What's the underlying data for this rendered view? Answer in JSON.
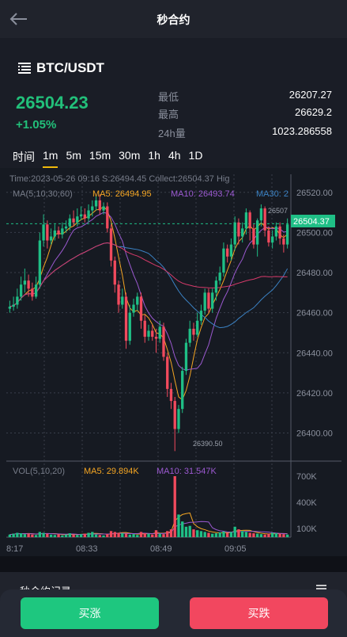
{
  "header": {
    "title": "秒合约"
  },
  "market": {
    "pair": "BTC/USDT",
    "price": "26504.23",
    "change": "+1.05%",
    "stats": [
      {
        "label": "最低",
        "value": "26207.27"
      },
      {
        "label": "最高",
        "value": "26629.2"
      },
      {
        "label": "24h量",
        "value": "1023.286558"
      }
    ]
  },
  "intervals": [
    "时间",
    "1m",
    "5m",
    "15m",
    "30m",
    "1h",
    "4h",
    "1D"
  ],
  "chart_info": {
    "info_line": "Time:2023-05-26 09:16   S:26494.45   Collect:26504.37   Hig",
    "ma_label": "MA(5;10;30;60)",
    "ma5": "MA5: 26494.95",
    "ma10": "MA10: 26493.74",
    "ma30": "MA30: 2",
    "vol_label": "VOL(5,10,20)",
    "vol_ma5": "MA5: 29.894K",
    "vol_ma10": "MA10: 31.547K",
    "last_price_tag": "26504.37",
    "high_marker": "26507",
    "low_marker": "26390.50"
  },
  "chart_data": {
    "type": "candlestick",
    "y_ticks": [
      "26520.00",
      "26500.00",
      "26480.00",
      "26460.00",
      "26440.00",
      "26420.00",
      "26400.00"
    ],
    "ylim": [
      26386,
      26529
    ],
    "x_ticks": [
      "8:17",
      "08:33",
      "08:49",
      "09:05"
    ],
    "vol_ticks": [
      "700K",
      "400K",
      "100K"
    ],
    "candles": [
      [
        26462,
        26463,
        26466,
        26460
      ],
      [
        26463,
        26464,
        26468,
        26461
      ],
      [
        26464,
        26468,
        26472,
        26462
      ],
      [
        26468,
        26474,
        26478,
        26466
      ],
      [
        26474,
        26476,
        26482,
        26470
      ],
      [
        26476,
        26472,
        26479,
        26468
      ],
      [
        26472,
        26468,
        26475,
        26466
      ],
      [
        26468,
        26474,
        26478,
        26467
      ],
      [
        26474,
        26496,
        26500,
        26472
      ],
      [
        26496,
        26504,
        26509,
        26493
      ],
      [
        26504,
        26496,
        26506,
        26492
      ],
      [
        26496,
        26498,
        26502,
        26494
      ],
      [
        26498,
        26501,
        26504,
        26496
      ],
      [
        26501,
        26499,
        26503,
        26497
      ],
      [
        26499,
        26502,
        26505,
        26497
      ],
      [
        26502,
        26503,
        26506,
        26500
      ],
      [
        26503,
        26507,
        26509,
        26501
      ],
      [
        26507,
        26505,
        26511,
        26503
      ],
      [
        26505,
        26508,
        26512,
        26503
      ],
      [
        26508,
        26509,
        26513,
        26506
      ],
      [
        26509,
        26507,
        26512,
        26505
      ],
      [
        26507,
        26511,
        26514,
        26505
      ],
      [
        26511,
        26513,
        26516,
        26508
      ],
      [
        26513,
        26516,
        26518,
        26511
      ],
      [
        26516,
        26511,
        26519,
        26509
      ],
      [
        26511,
        26513,
        26515,
        26509
      ],
      [
        26513,
        26502,
        26515,
        26500
      ],
      [
        26502,
        26486,
        26504,
        26483
      ],
      [
        26486,
        26474,
        26488,
        26470
      ],
      [
        26474,
        26464,
        26476,
        26460
      ],
      [
        26464,
        26468,
        26472,
        26462
      ],
      [
        26468,
        26446,
        26470,
        26442
      ],
      [
        26446,
        26460,
        26464,
        26444
      ],
      [
        26460,
        26464,
        26467,
        26458
      ],
      [
        26464,
        26468,
        26470,
        26461
      ],
      [
        26468,
        26456,
        26470,
        26452
      ],
      [
        26456,
        26448,
        26459,
        26445
      ],
      [
        26448,
        26451,
        26454,
        26446
      ],
      [
        26451,
        26448,
        26454,
        26446
      ],
      [
        26448,
        26447,
        26452,
        26440
      ],
      [
        26447,
        26453,
        26456,
        26445
      ],
      [
        26453,
        26438,
        26455,
        26436
      ],
      [
        26438,
        26422,
        26440,
        26418
      ],
      [
        26422,
        26416,
        26425,
        26412
      ],
      [
        26416,
        26402,
        26418,
        26391
      ],
      [
        26402,
        26412,
        26414,
        26400
      ],
      [
        26412,
        26431,
        26433,
        26410
      ],
      [
        26431,
        26445,
        26447,
        26429
      ],
      [
        26445,
        26452,
        26456,
        26443
      ],
      [
        26452,
        26449,
        26455,
        26446
      ],
      [
        26449,
        26456,
        26460,
        26448
      ],
      [
        26456,
        26461,
        26464,
        26454
      ],
      [
        26461,
        26470,
        26472,
        26459
      ],
      [
        26470,
        26462,
        26472,
        26460
      ],
      [
        26462,
        26470,
        26472,
        26460
      ],
      [
        26470,
        26476,
        26478,
        26466
      ],
      [
        26476,
        26480,
        26483,
        26474
      ],
      [
        26480,
        26492,
        26495,
        26478
      ],
      [
        26492,
        26488,
        26494,
        26485
      ],
      [
        26488,
        26494,
        26497,
        26486
      ],
      [
        26494,
        26505,
        26508,
        26491
      ],
      [
        26505,
        26498,
        26507,
        26494
      ],
      [
        26498,
        26502,
        26505,
        26495
      ],
      [
        26502,
        26510,
        26512,
        26499
      ],
      [
        26510,
        26502,
        26511,
        26496
      ],
      [
        26502,
        26494,
        26504,
        26492
      ],
      [
        26494,
        26506,
        26507,
        26488
      ],
      [
        26506,
        26512,
        26514,
        26503
      ],
      [
        26512,
        26501,
        26513,
        26498
      ],
      [
        26501,
        26495,
        26503,
        26493
      ],
      [
        26495,
        26498,
        26501,
        26492
      ],
      [
        26498,
        26503,
        26505,
        26496
      ],
      [
        26503,
        26497,
        26505,
        26494
      ],
      [
        26497,
        26494,
        26499,
        26490
      ],
      [
        26494,
        26504,
        26507,
        26492
      ]
    ],
    "volume": [
      30,
      40,
      50,
      45,
      35,
      40,
      30,
      25,
      60,
      50,
      40,
      30,
      25,
      35,
      20,
      30,
      45,
      30,
      25,
      35,
      40,
      50,
      60,
      30,
      25,
      20,
      35,
      70,
      60,
      50,
      45,
      40,
      30,
      35,
      25,
      60,
      45,
      40,
      30,
      80,
      40,
      35,
      70,
      90,
      700,
      260,
      180,
      120,
      130,
      90,
      80,
      70,
      60,
      50,
      40,
      45,
      55,
      65,
      50,
      60,
      120,
      90,
      70,
      60,
      50,
      45,
      40,
      35,
      30,
      40,
      50,
      45,
      40,
      35,
      30
    ],
    "colors": {
      "up": "#1fbf86",
      "down": "#f14a5d",
      "ma5": "#f5a623",
      "ma10": "#9b59d0",
      "ma30": "#3b82c4",
      "ma60": "#d63a6a"
    }
  }
}
